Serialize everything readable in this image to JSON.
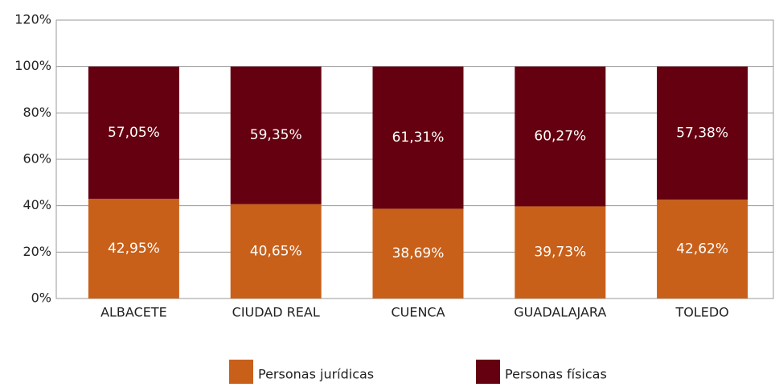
{
  "chart_data": {
    "type": "stacked_bar",
    "categories": [
      "ALBACETE",
      "CIUDAD REAL",
      "CUENCA",
      "GUADALAJARA",
      "TOLEDO"
    ],
    "series": [
      {
        "name": "Personas jurídicas",
        "color": "#c8601a",
        "values": [
          42.95,
          40.65,
          38.69,
          39.73,
          42.62
        ],
        "value_labels": [
          "42,95%",
          "40,65%",
          "38,69%",
          "39,73%",
          "42,62%"
        ]
      },
      {
        "name": "Personas físicas",
        "color": "#650010",
        "values": [
          57.05,
          59.35,
          61.31,
          60.27,
          57.38
        ],
        "value_labels": [
          "57,05%",
          "59,35%",
          "61,31%",
          "60,27%",
          "57,38%"
        ]
      }
    ],
    "ylim": [
      0,
      120
    ],
    "yticks": [
      {
        "value": 0,
        "label": "0%"
      },
      {
        "value": 20,
        "label": "20%"
      },
      {
        "value": 40,
        "label": "40%"
      },
      {
        "value": 60,
        "label": "60%"
      },
      {
        "value": 80,
        "label": "80%"
      },
      {
        "value": 100,
        "label": "100%"
      },
      {
        "value": 120,
        "label": "120%"
      }
    ],
    "grid": true,
    "legend": "bottom"
  }
}
